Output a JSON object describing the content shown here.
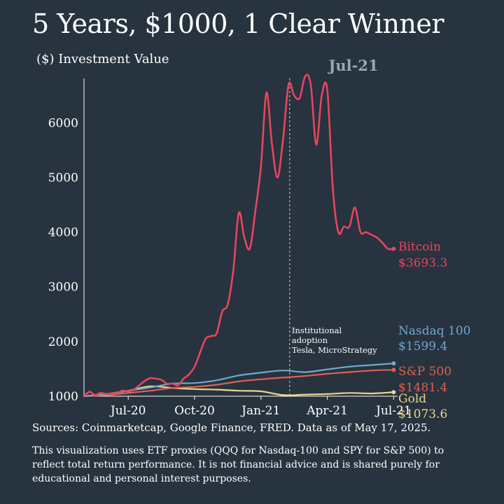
{
  "title": "5 Years, $1000, 1 Clear Winner",
  "footer": {
    "sources": "Sources: Coinmarketcap, Google Finance, FRED. Data as of May 17, 2025.",
    "disclaimer": "This visualization uses ETF proxies (QQQ for Nasdaq-100 and SPY for S&P 500) to reflect total return performance. It is not financial advice and is shared purely for educational and personal interest purposes."
  },
  "colors": {
    "background": "#27333f",
    "bitcoin": "#e8455f",
    "nasdaq": "#6fa8cf",
    "sp500": "#e0614f",
    "gold": "#ecd48a",
    "axis": "#ffffff",
    "date_label": "#9aa8b3"
  },
  "chart_data": {
    "type": "line",
    "title": "5 Years, $1000, 1 Clear Winner",
    "ylabel": "($) Investment Value",
    "xlabel": "",
    "ylim": [
      1000,
      6900
    ],
    "yticks": [
      1000,
      2000,
      3000,
      4000,
      5000,
      6000
    ],
    "xticks": [
      {
        "label": "Jul-20",
        "x": 2.0
      },
      {
        "label": "Oct-20",
        "x": 5.0
      },
      {
        "label": "Jan-21",
        "x": 8.0
      },
      {
        "label": "Apr-21",
        "x": 11.0
      },
      {
        "label": "Jul-21",
        "x": 14.0
      }
    ],
    "xlim": [
      0,
      14.4
    ],
    "grid": false,
    "current_date_label": "Jul-21",
    "annotation": {
      "x": 9.3,
      "lines": [
        "Institutional",
        "adoption",
        "Tesla, MicroStrategy"
      ]
    },
    "series": [
      {
        "name": "Bitcoin",
        "value_label": "$3693.3",
        "color_key": "bitcoin",
        "x": [
          0,
          0.25,
          0.5,
          0.75,
          1,
          1.25,
          1.5,
          1.75,
          2,
          2.25,
          2.5,
          2.75,
          3,
          3.25,
          3.5,
          3.75,
          4,
          4.25,
          4.5,
          4.75,
          5,
          5.25,
          5.5,
          5.75,
          6,
          6.25,
          6.5,
          6.75,
          7,
          7.25,
          7.5,
          7.75,
          8,
          8.25,
          8.5,
          8.75,
          9,
          9.25,
          9.5,
          9.75,
          10,
          10.25,
          10.5,
          10.75,
          11,
          11.25,
          11.5,
          11.75,
          12,
          12.25,
          12.5,
          12.75,
          13,
          13.25,
          13.5,
          13.75,
          14
        ],
        "y": [
          1000,
          1080,
          1020,
          1060,
          1040,
          1050,
          1060,
          1100,
          1090,
          1120,
          1200,
          1280,
          1330,
          1320,
          1300,
          1230,
          1230,
          1200,
          1320,
          1400,
          1540,
          1800,
          2050,
          2100,
          2150,
          2550,
          2680,
          3300,
          4350,
          3900,
          3700,
          4400,
          5200,
          6550,
          5600,
          5000,
          5700,
          6700,
          6500,
          6450,
          6850,
          6700,
          5600,
          6500,
          6600,
          4800,
          4000,
          4100,
          4100,
          4450,
          4000,
          4000,
          3950,
          3900,
          3800,
          3693.3,
          3693.3
        ]
      },
      {
        "name": "Nasdaq 100",
        "value_label": "$1599.4",
        "color_key": "nasdaq",
        "x": [
          0,
          1,
          2,
          3,
          4,
          5,
          6,
          7,
          8,
          9,
          10,
          11,
          12,
          13,
          14
        ],
        "y": [
          1000,
          1040,
          1100,
          1160,
          1230,
          1240,
          1290,
          1380,
          1430,
          1470,
          1440,
          1490,
          1540,
          1570,
          1599.4
        ]
      },
      {
        "name": "S&P 500",
        "value_label": "$1481.4",
        "color_key": "sp500",
        "x": [
          0,
          1,
          2,
          3,
          4,
          5,
          6,
          7,
          8,
          9,
          10,
          11,
          12,
          13,
          14
        ],
        "y": [
          1000,
          1020,
          1060,
          1100,
          1150,
          1170,
          1210,
          1270,
          1310,
          1340,
          1370,
          1410,
          1440,
          1470,
          1481.4
        ]
      },
      {
        "name": "Gold",
        "value_label": "$1073.6",
        "color_key": "gold",
        "x": [
          0,
          1,
          2,
          3,
          4,
          5,
          6,
          7,
          8,
          9,
          10,
          11,
          12,
          13,
          14
        ],
        "y": [
          1000,
          1040,
          1100,
          1180,
          1150,
          1130,
          1120,
          1100,
          1090,
          1020,
          1030,
          1040,
          1060,
          1050,
          1073.6
        ]
      }
    ]
  }
}
